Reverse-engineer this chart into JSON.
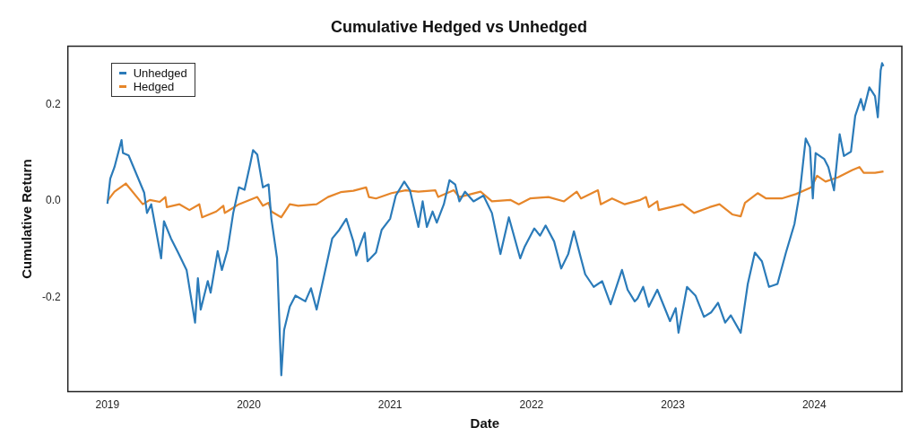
{
  "chart_data": {
    "type": "line",
    "title": "Cumulative Hedged vs Unhedged",
    "xlabel": "Date",
    "ylabel": "Cumulative Return",
    "xlim": [
      2018.72,
      2024.62
    ],
    "xticks": [
      2019,
      2020,
      2021,
      2022,
      2023,
      2024
    ],
    "ylim": [
      -0.395,
      0.32
    ],
    "yticks": [
      {
        "value": -0.2,
        "label": "-0.2"
      },
      {
        "value": 0,
        "label": "0.0"
      },
      {
        "value": 0.2,
        "label": "0.2"
      }
    ],
    "grid": false,
    "legend": "top left",
    "marker": "none",
    "line_style": "solid",
    "series": [
      {
        "name": "Unhedged",
        "color": "#2b7bb9",
        "x": [
          2019.0,
          2019.02,
          2019.05,
          2019.1,
          2019.11,
          2019.15,
          2019.26,
          2019.28,
          2019.31,
          2019.38,
          2019.4,
          2019.45,
          2019.5,
          2019.56,
          2019.62,
          2019.64,
          2019.66,
          2019.71,
          2019.73,
          2019.78,
          2019.81,
          2019.85,
          2019.89,
          2019.93,
          2019.97,
          2020.01,
          2020.03,
          2020.06,
          2020.1,
          2020.14,
          2020.16,
          2020.2,
          2020.23,
          2020.25,
          2020.29,
          2020.33,
          2020.4,
          2020.44,
          2020.48,
          2020.52,
          2020.59,
          2020.64,
          2020.69,
          2020.74,
          2020.76,
          2020.82,
          2020.84,
          2020.9,
          2020.94,
          2021.0,
          2021.04,
          2021.1,
          2021.14,
          2021.2,
          2021.23,
          2021.26,
          2021.3,
          2021.33,
          2021.38,
          2021.42,
          2021.46,
          2021.49,
          2021.53,
          2021.59,
          2021.66,
          2021.72,
          2021.78,
          2021.84,
          2021.92,
          2021.95,
          2022.02,
          2022.06,
          2022.1,
          2022.16,
          2022.21,
          2022.26,
          2022.3,
          2022.35,
          2022.38,
          2022.44,
          2022.5,
          2022.56,
          2022.64,
          2022.68,
          2022.73,
          2022.75,
          2022.79,
          2022.83,
          2022.89,
          2022.98,
          2023.02,
          2023.04,
          2023.1,
          2023.16,
          2023.22,
          2023.27,
          2023.32,
          2023.37,
          2023.41,
          2023.48,
          2023.53,
          2023.58,
          2023.63,
          2023.68,
          2023.74,
          2023.8,
          2023.86,
          2023.9,
          2023.94,
          2023.97,
          2023.99,
          2024.01,
          2024.07,
          2024.1,
          2024.14,
          2024.18,
          2024.21,
          2024.26,
          2024.29,
          2024.33,
          2024.35,
          2024.39,
          2024.43,
          2024.45,
          2024.47,
          2024.48,
          2024.49
        ],
        "values": [
          -0.006,
          0.046,
          0.07,
          0.126,
          0.099,
          0.094,
          0.017,
          -0.025,
          -0.007,
          -0.119,
          -0.042,
          -0.078,
          -0.107,
          -0.143,
          -0.252,
          -0.16,
          -0.225,
          -0.166,
          -0.19,
          -0.104,
          -0.143,
          -0.101,
          -0.025,
          0.028,
          0.023,
          0.076,
          0.105,
          0.096,
          0.028,
          0.034,
          -0.037,
          -0.119,
          -0.361,
          -0.267,
          -0.219,
          -0.196,
          -0.208,
          -0.181,
          -0.225,
          -0.172,
          -0.078,
          -0.06,
          -0.037,
          -0.084,
          -0.113,
          -0.066,
          -0.125,
          -0.107,
          -0.06,
          -0.037,
          0.011,
          0.04,
          0.022,
          -0.054,
          -0.001,
          -0.054,
          -0.022,
          -0.045,
          -0.007,
          0.043,
          0.034,
          -0.001,
          0.019,
          -0.001,
          0.011,
          -0.025,
          -0.11,
          -0.034,
          -0.119,
          -0.096,
          -0.057,
          -0.072,
          -0.051,
          -0.084,
          -0.14,
          -0.11,
          -0.063,
          -0.119,
          -0.152,
          -0.178,
          -0.166,
          -0.214,
          -0.143,
          -0.184,
          -0.208,
          -0.202,
          -0.178,
          -0.219,
          -0.184,
          -0.249,
          -0.222,
          -0.273,
          -0.178,
          -0.196,
          -0.24,
          -0.231,
          -0.211,
          -0.252,
          -0.237,
          -0.273,
          -0.172,
          -0.107,
          -0.125,
          -0.178,
          -0.172,
          -0.107,
          -0.048,
          0.022,
          0.129,
          0.111,
          0.005,
          0.099,
          0.087,
          0.07,
          0.022,
          0.138,
          0.093,
          0.102,
          0.176,
          0.211,
          0.188,
          0.235,
          0.217,
          0.173,
          0.27,
          0.285,
          0.279
        ]
      },
      {
        "name": "Hedged",
        "color": "#e6862a",
        "x": [
          2019.0,
          2019.05,
          2019.13,
          2019.25,
          2019.3,
          2019.37,
          2019.41,
          2019.42,
          2019.51,
          2019.58,
          2019.65,
          2019.67,
          2019.77,
          2019.82,
          2019.83,
          2019.93,
          2020.06,
          2020.1,
          2020.14,
          2020.16,
          2020.23,
          2020.29,
          2020.35,
          2020.48,
          2020.56,
          2020.65,
          2020.74,
          2020.83,
          2020.85,
          2020.9,
          2021.01,
          2021.11,
          2021.2,
          2021.32,
          2021.34,
          2021.45,
          2021.49,
          2021.64,
          2021.72,
          2021.85,
          2021.91,
          2021.99,
          2022.12,
          2022.23,
          2022.32,
          2022.35,
          2022.47,
          2022.49,
          2022.57,
          2022.66,
          2022.77,
          2022.81,
          2022.83,
          2022.89,
          2022.9,
          2023.07,
          2023.15,
          2023.26,
          2023.33,
          2023.42,
          2023.48,
          2023.51,
          2023.6,
          2023.66,
          2023.77,
          2023.87,
          2023.98,
          2024.02,
          2024.08,
          2024.17,
          2024.27,
          2024.32,
          2024.35,
          2024.43,
          2024.49
        ],
        "values": [
          0.0,
          0.019,
          0.036,
          -0.007,
          0.002,
          -0.002,
          0.008,
          -0.013,
          -0.007,
          -0.019,
          -0.007,
          -0.034,
          -0.022,
          -0.01,
          -0.025,
          -0.007,
          0.008,
          -0.01,
          -0.004,
          -0.022,
          -0.034,
          -0.007,
          -0.01,
          -0.007,
          0.008,
          0.018,
          0.021,
          0.028,
          0.008,
          0.005,
          0.016,
          0.022,
          0.019,
          0.022,
          0.008,
          0.022,
          0.008,
          0.019,
          -0.001,
          0.002,
          -0.007,
          0.005,
          0.008,
          -0.001,
          0.019,
          0.005,
          0.022,
          -0.007,
          0.005,
          -0.007,
          0.002,
          0.008,
          -0.013,
          -0.001,
          -0.019,
          -0.007,
          -0.025,
          -0.013,
          -0.007,
          -0.028,
          -0.032,
          -0.004,
          0.016,
          0.005,
          0.005,
          0.014,
          0.028,
          0.052,
          0.04,
          0.049,
          0.064,
          0.07,
          0.058,
          0.058,
          0.061
        ]
      }
    ]
  }
}
